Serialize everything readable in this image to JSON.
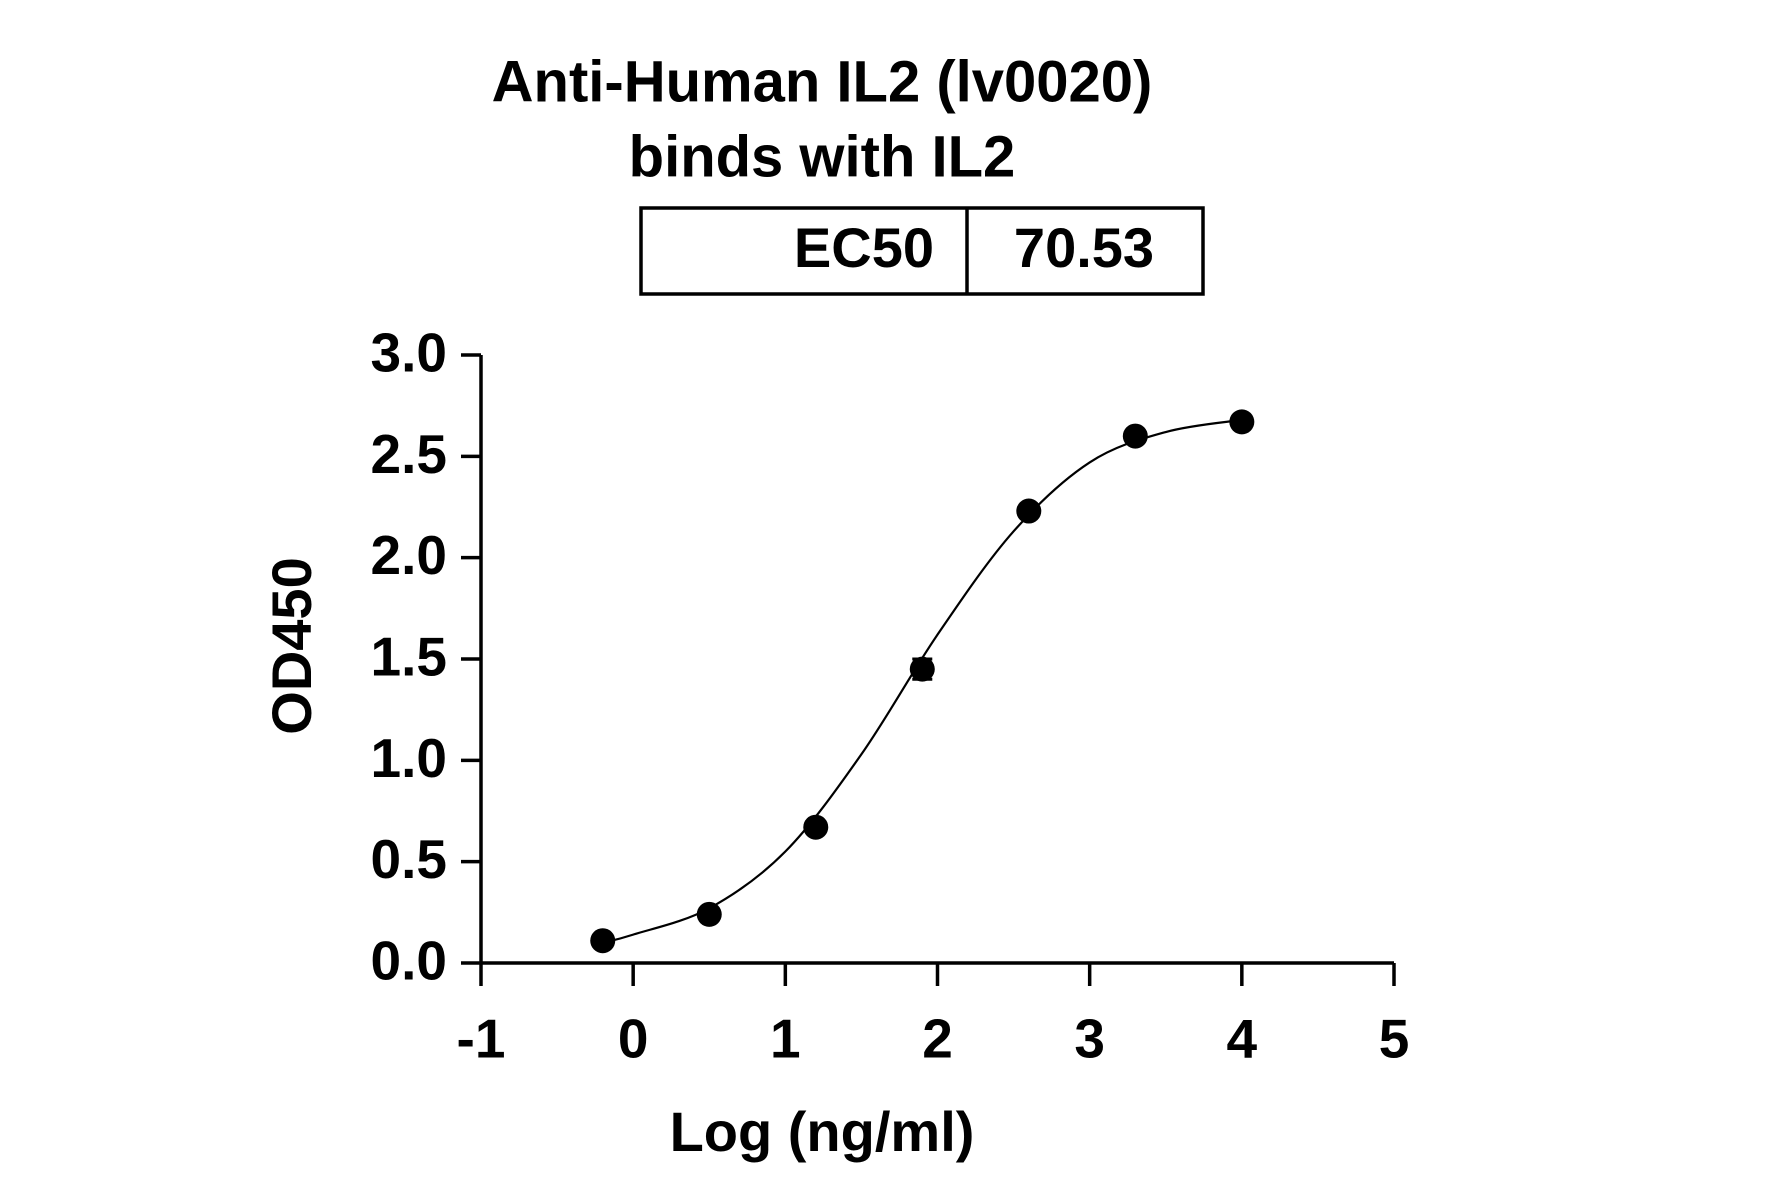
{
  "chart_data": {
    "type": "scatter",
    "title": "Anti-Human IL2 (lv0020)",
    "subtitle": "binds with IL2",
    "ec50_label": "EC50",
    "ec50_value": "70.53",
    "x_label": "Log (ng/ml)",
    "y_label": "OD450",
    "xlim": [
      -1,
      5
    ],
    "ylim": [
      0,
      3
    ],
    "xticks": [
      -1,
      0,
      1,
      2,
      3,
      4,
      5
    ],
    "yticks": [
      {
        "value": 0,
        "label": "0.0"
      },
      0.5,
      {
        "value": 1,
        "label": "1.0"
      },
      1.5,
      {
        "value": 2,
        "label": "2.0"
      },
      2.5,
      {
        "value": 3,
        "label": "3.0"
      }
    ],
    "color": "#000000",
    "x": [
      -0.2,
      0.5,
      1.2,
      1.9,
      2.6,
      3.3,
      4.0
    ],
    "values": [
      0.11,
      0.24,
      0.67,
      1.45,
      2.23,
      2.6,
      2.67
    ],
    "errors": [
      null,
      null,
      null,
      0.05,
      null,
      null,
      null
    ],
    "fit": {
      "x": [
        -0.2,
        0,
        0.5,
        1.0,
        1.5,
        2.0,
        2.5,
        3.0,
        3.5,
        4.0
      ],
      "values": [
        0.1,
        0.14,
        0.27,
        0.55,
        1.03,
        1.62,
        2.13,
        2.47,
        2.62,
        2.68
      ]
    }
  }
}
